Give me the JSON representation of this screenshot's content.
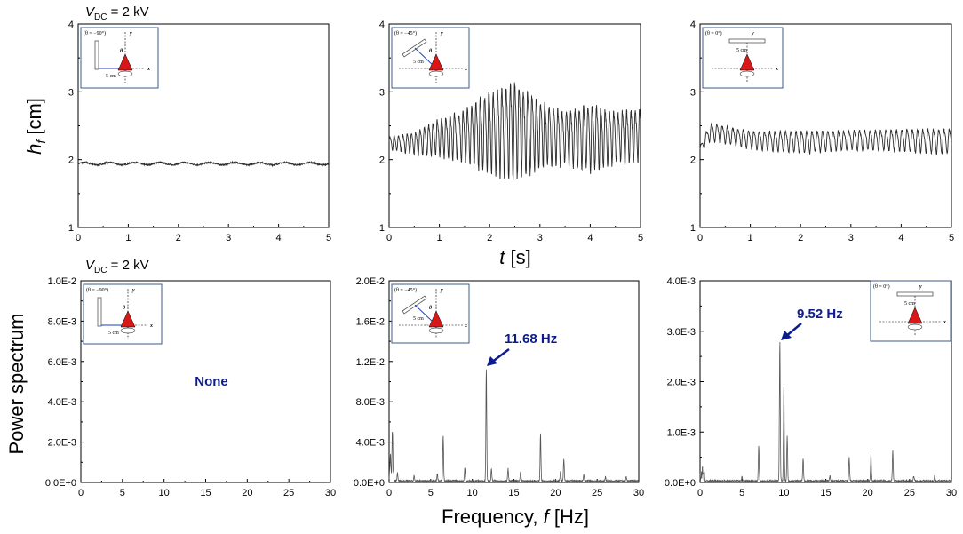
{
  "figure": {
    "top_label": {
      "var": "V",
      "sub": "DC",
      "rest": " = 2 kV"
    },
    "bottom_label": {
      "var": "V",
      "sub": "DC",
      "rest": " = 2 kV"
    },
    "top_ylabel": {
      "var": "h",
      "sub": "f",
      "rest": "  [cm]"
    },
    "top_xlabel": {
      "var": "t",
      "rest": " [s]"
    },
    "bottom_ylabel": "Power spectrum",
    "bottom_xlabel": {
      "main": "Frequency, ",
      "var": "f",
      "rest": " [Hz]"
    },
    "colors": {
      "trace": "#2b2b2b",
      "spectrum": "#555555",
      "annotation": "#0d1c8c",
      "nozzle": "#d81818",
      "inset_border": "#3c5a8a"
    }
  },
  "insets": [
    {
      "theta_label": "(θ = −90°)",
      "distance_label": "5 cm",
      "y_label": "y",
      "x_label": "x",
      "angle_label": "θ"
    },
    {
      "theta_label": "(θ = −45°)",
      "distance_label": "5 cm",
      "y_label": "y",
      "x_label": "x",
      "angle_label": "θ"
    },
    {
      "theta_label": "(θ = 0°)",
      "distance_label": "5 cm",
      "y_label": "y",
      "x_label": "x",
      "angle_label": "θ"
    }
  ],
  "chart_data": [
    {
      "type": "line",
      "panel": "top-left",
      "xlim": [
        0,
        5
      ],
      "ylim": [
        1,
        4
      ],
      "xticks": [
        "0",
        "1",
        "2",
        "3",
        "4",
        "5"
      ],
      "yticks": [
        "1",
        "2",
        "3",
        "4"
      ],
      "series": [
        {
          "mean": 1.94,
          "amplitude": 0.03,
          "frequency_hz": 2.0,
          "note_values": "nearly flat trace around 1.94 cm"
        }
      ]
    },
    {
      "type": "line",
      "panel": "top-middle",
      "xlim": [
        0,
        5
      ],
      "ylim": [
        1,
        4
      ],
      "xticks": [
        "0",
        "1",
        "2",
        "3",
        "4",
        "5"
      ],
      "yticks": [
        "1",
        "2",
        "3",
        "4"
      ],
      "series": [
        {
          "mean_curve_t": [
            0,
            0.5,
            1,
            1.5,
            2,
            2.5,
            3,
            3.5,
            4,
            4.5,
            5
          ],
          "mean_curve_h": [
            2.25,
            2.25,
            2.35,
            2.38,
            2.45,
            2.48,
            2.42,
            2.35,
            2.38,
            2.35,
            2.4
          ],
          "amplitude_t": [
            0,
            0.5,
            1,
            1.5,
            2,
            2.5,
            3,
            3.5,
            4,
            4.5,
            5
          ],
          "amplitude_h": [
            0.08,
            0.15,
            0.25,
            0.35,
            0.55,
            0.65,
            0.45,
            0.35,
            0.45,
            0.35,
            0.35
          ],
          "frequency_hz": 11.68
        }
      ]
    },
    {
      "type": "line",
      "panel": "top-right",
      "xlim": [
        0,
        5
      ],
      "ylim": [
        1,
        4
      ],
      "xticks": [
        "0",
        "1",
        "2",
        "3",
        "4",
        "5"
      ],
      "yticks": [
        "1",
        "2",
        "3",
        "4"
      ],
      "series": [
        {
          "mean_curve_t": [
            0,
            0.2,
            1,
            2,
            3,
            4,
            5
          ],
          "mean_curve_h": [
            2.15,
            2.42,
            2.3,
            2.27,
            2.3,
            2.3,
            2.28
          ],
          "amplitude_t": [
            0,
            0.2,
            1,
            2,
            3,
            4,
            5
          ],
          "amplitude_h": [
            0.05,
            0.12,
            0.12,
            0.15,
            0.13,
            0.15,
            0.17
          ],
          "frequency_hz": 9.52
        }
      ]
    },
    {
      "type": "line",
      "panel": "bottom-left",
      "xlim": [
        0,
        30
      ],
      "ylim": [
        0,
        0.01
      ],
      "xticks": [
        "0",
        "5",
        "10",
        "15",
        "20",
        "25",
        "30"
      ],
      "yticks": [
        "0.0E+0",
        "2.0E-3",
        "4.0E-3",
        "6.0E-3",
        "8.0E-3",
        "1.0E-2"
      ],
      "annotation": {
        "text": "None",
        "x": 15,
        "y": 0.004
      },
      "series": []
    },
    {
      "type": "line",
      "panel": "bottom-middle",
      "xlim": [
        0,
        30
      ],
      "ylim": [
        0,
        0.02
      ],
      "xticks": [
        "0",
        "5",
        "10",
        "15",
        "20",
        "25",
        "30"
      ],
      "yticks": [
        "0.0E+0",
        "4.0E-3",
        "8.0E-3",
        "1.2E-2",
        "1.6E-2",
        "2.0E-2"
      ],
      "annotation": {
        "text": "11.68 Hz",
        "peak_x": 11.68,
        "peak_y": 0.0112
      },
      "peaks": [
        {
          "f": 0.15,
          "p": 0.0025
        },
        {
          "f": 0.4,
          "p": 0.0045
        },
        {
          "f": 1.0,
          "p": 0.0008
        },
        {
          "f": 3.0,
          "p": 0.0005
        },
        {
          "f": 5.8,
          "p": 0.0007
        },
        {
          "f": 6.5,
          "p": 0.0045
        },
        {
          "f": 9.1,
          "p": 0.0013
        },
        {
          "f": 11.68,
          "p": 0.0112
        },
        {
          "f": 12.3,
          "p": 0.0012
        },
        {
          "f": 14.3,
          "p": 0.0012
        },
        {
          "f": 15.8,
          "p": 0.0009
        },
        {
          "f": 18.2,
          "p": 0.0047
        },
        {
          "f": 20.6,
          "p": 0.001
        },
        {
          "f": 21.0,
          "p": 0.0022
        },
        {
          "f": 23.4,
          "p": 0.0006
        },
        {
          "f": 26.0,
          "p": 0.0004
        },
        {
          "f": 28.5,
          "p": 0.0004
        }
      ],
      "baseline": 0.00015
    },
    {
      "type": "line",
      "panel": "bottom-right",
      "xlim": [
        0,
        30
      ],
      "ylim": [
        0,
        0.004
      ],
      "xticks": [
        "0",
        "5",
        "10",
        "15",
        "20",
        "25",
        "30"
      ],
      "yticks": [
        "0.0E+0",
        "1.0E-3",
        "2.0E-3",
        "3.0E-3",
        "4.0E-3"
      ],
      "annotation": {
        "text": "9.52 Hz",
        "peak_x": 9.52,
        "peak_y": 0.00275
      },
      "peaks": [
        {
          "f": 0.3,
          "p": 0.00012
        },
        {
          "f": 5.0,
          "p": 8e-05
        },
        {
          "f": 7.0,
          "p": 0.00068
        },
        {
          "f": 9.52,
          "p": 0.00275
        },
        {
          "f": 10.0,
          "p": 0.00185
        },
        {
          "f": 10.4,
          "p": 0.0009
        },
        {
          "f": 12.3,
          "p": 0.00045
        },
        {
          "f": 15.5,
          "p": 0.0001
        },
        {
          "f": 17.8,
          "p": 0.00048
        },
        {
          "f": 20.4,
          "p": 0.00052
        },
        {
          "f": 23.0,
          "p": 0.0006
        },
        {
          "f": 25.5,
          "p": 0.0001
        },
        {
          "f": 28.0,
          "p": 0.0001
        }
      ],
      "baseline": 3e-05
    }
  ]
}
